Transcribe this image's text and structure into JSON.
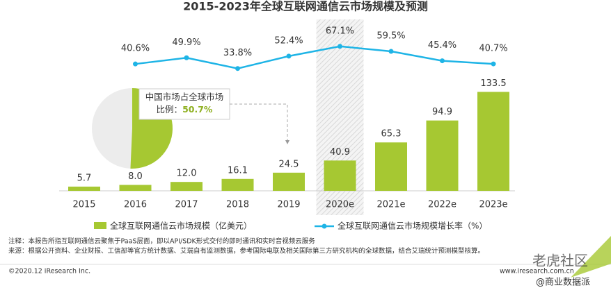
{
  "chart_data": {
    "type": "bar",
    "title": "2015-2023年全球互联网通信云市场规模及预测",
    "categories": [
      "2015",
      "2016",
      "2017",
      "2018",
      "2019",
      "2020e",
      "2021e",
      "2022e",
      "2023e"
    ],
    "highlight_category": "2020e",
    "series": [
      {
        "name": "全球互联网通信云市场规模（亿美元）",
        "type": "bar",
        "color": "#a6c832",
        "values": [
          5.7,
          8.0,
          12.0,
          16.1,
          24.5,
          40.9,
          65.3,
          94.9,
          133.5
        ],
        "value_labels": [
          "5.7",
          "8.0",
          "12.0",
          "16.1",
          "24.5",
          "40.9",
          "65.3",
          "94.9",
          "133.5"
        ]
      },
      {
        "name": "全球互联网通信云市场规模增长率（%）",
        "type": "line",
        "axis": "y2",
        "color": "#1eb4e6",
        "values": [
          null,
          40.6,
          49.9,
          33.8,
          52.4,
          67.1,
          59.5,
          45.4,
          40.7
        ],
        "value_labels": [
          null,
          "40.6%",
          "49.9%",
          "33.8%",
          "52.4%",
          "67.1%",
          "59.5%",
          "45.4%",
          "40.7%"
        ]
      }
    ],
    "ylim": [
      0,
      220
    ],
    "y2lim": [
      -150,
      95
    ],
    "pie": {
      "label": "中国市场占全球市场比例：",
      "value": 50.7,
      "value_label": "50.7%",
      "color": "#a6c832",
      "rest_color": "#ececec"
    },
    "notes": [
      "注释：本报告所指互联网通信云聚焦于PaaS层面，即以API/SDK形式交付的即时通讯和实时音视频云服务",
      "来源：根据公开资料、企业财报、工信部等官方统计数据、艾瑞自有监测数据，参考国际电联及相关国际第三方研究机构的全球数据，结合艾瑞统计预测模型核算。"
    ],
    "copyright": "©2020.12 iResearch Inc.",
    "website": "www.iresearch.com.cn",
    "watermarks": [
      "老虎社区",
      "@商业数据派"
    ]
  }
}
